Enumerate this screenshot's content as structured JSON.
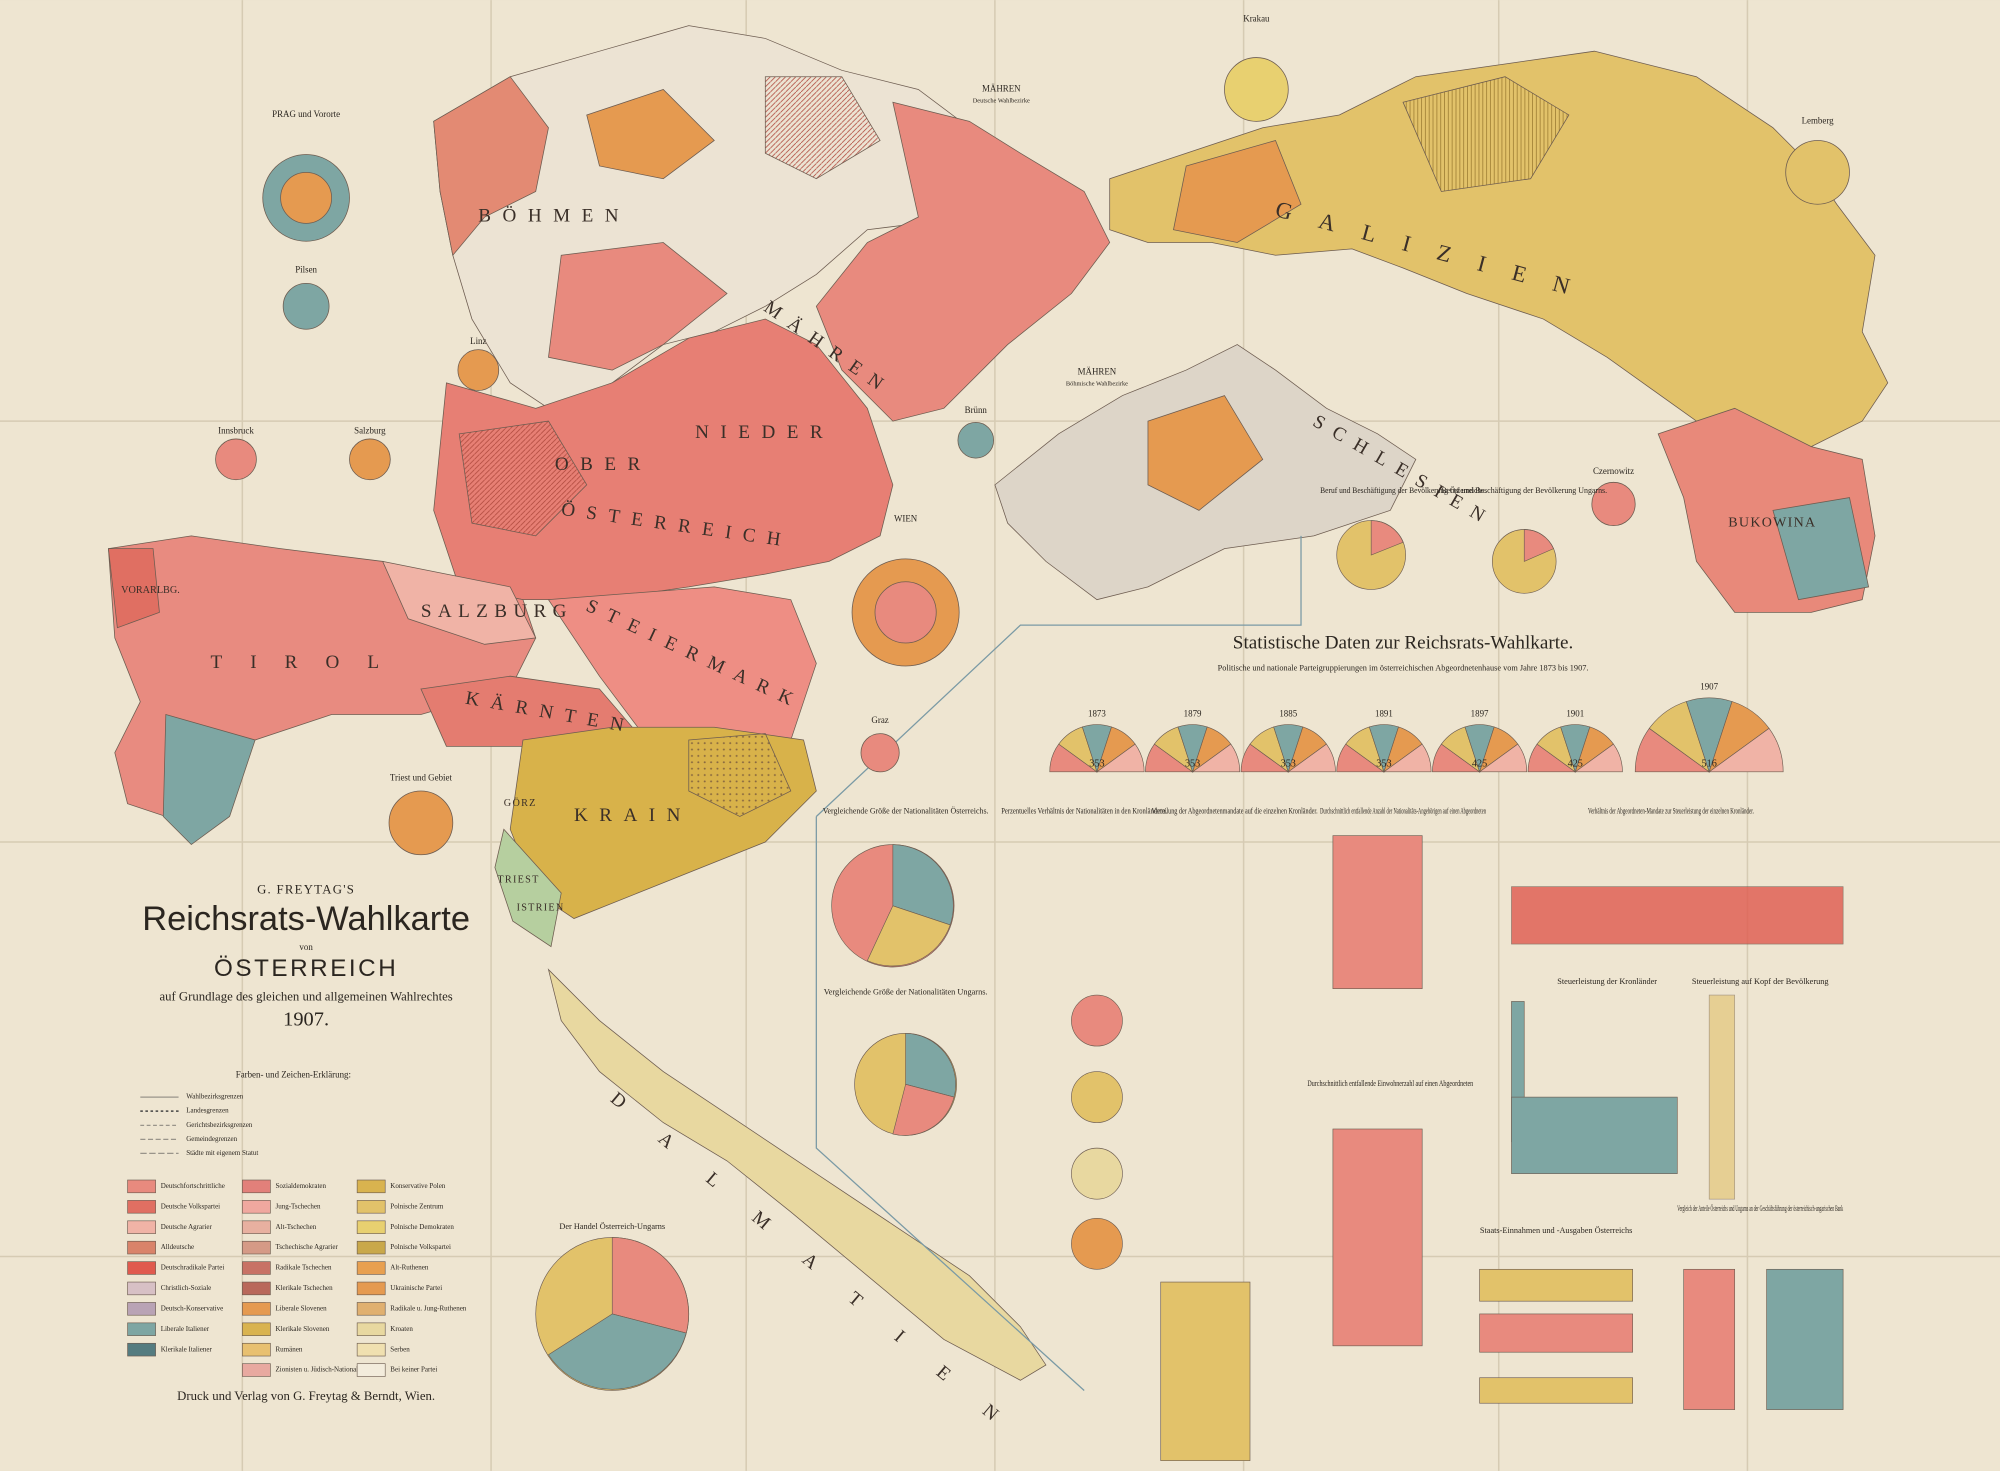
{
  "header": {
    "publisher_line": "G. FREYTAG'S",
    "title": "Reichsrats-Wahlkarte",
    "von": "von",
    "country": "ÖSTERREICH",
    "subtitle": "auf Grundlage des gleichen und allgemeinen Wahlrechtes",
    "year": "1907."
  },
  "regions": [
    "BÖHMEN",
    "MÄHREN",
    "SCHLESIEN",
    "GALIZIEN",
    "BUKOWINA",
    "OBER",
    "NIEDER",
    "ÖSTERREICH",
    "SALZBURG",
    "STEIERMARK",
    "TIROL",
    "VORARLBG.",
    "KÄRNTEN",
    "KRAIN",
    "GÖRZ",
    "TRIEST",
    "ISTRIEN",
    "DALMATIEN"
  ],
  "insets": [
    "PRAG und Vororte",
    "Pilsen",
    "Linz",
    "Innsbruck",
    "Salzburg",
    "Brünn",
    "WIEN",
    "Graz",
    "Triest und Gebiet",
    "Krakau",
    "Lemberg",
    "Czernowitz",
    "MÄHREN",
    "Deutsche Wahlbezirke",
    "MÄHREN",
    "Böhmische Wahlbezirke"
  ],
  "legend": {
    "title": "Farben- und Zeichen-Erklärung:",
    "symbols": [
      "Wahlbezirksgrenzen",
      "Landesgrenzen",
      "Gerichtsbezirksgrenzen",
      "Gemeindegrenzen",
      "Städte mit eigenem Statut"
    ],
    "parties": [
      "Deutschfortschrittliche",
      "Deutsche Volkspartei",
      "Deutsche Agrarier",
      "Alldeutsche",
      "Deutschradikale Partei",
      "Christlich-Soziale",
      "Deutsch-Konservative",
      "Liberale Italiener",
      "Klerikale Italiener",
      "Sozialdemokraten",
      "Jung-Tschechen",
      "Alt-Tschechen",
      "Tschechische Agrarier",
      "Radikale Tschechen",
      "Klerikale Tschechen",
      "Liberale Slovenen",
      "Klerikale Slovenen",
      "Rumänen",
      "Zionisten u. Jüdisch-Nationale",
      "Konservative Polen",
      "Polnische Zentrum",
      "Polnische Demokraten",
      "Polnische Volkspartei",
      "Alt-Ruthenen",
      "Ukrainische Partei",
      "Radikale u. Jung-Ruthenen",
      "Kroaten",
      "Serben",
      "Bei keiner Partei"
    ]
  },
  "imprint": "Druck und Verlag von G. Freytag & Berndt, Wien.",
  "statistics": {
    "title": "Statistische Daten zur Reichsrats-Wahlkarte.",
    "subtitle": "Politische und nationale Parteigruppierungen im österreichischen Abgeordnetenhause vom Jahre 1873 bis 1907.",
    "years": [
      "1873",
      "1879",
      "1885",
      "1891",
      "1897",
      "1901",
      "1907"
    ],
    "totals": [
      "353",
      "353",
      "353",
      "353",
      "425",
      "425",
      "516"
    ],
    "panels": [
      "Vergleichende Größe der Nationalitäten Österreichs.",
      "Vergleichende Größe der Nationalitäten Ungarns.",
      "Perzentuelles Verhältnis der Nationalitäten in den Kronländern.",
      "Verteilung der Abgeordnetenmandate auf die einzelnen Kronländer.",
      "Durchschnittlich entfallende Anzahl der Nationalitäts-Angehörigen auf einen Abgeordneten",
      "Verhältnis der Abgeordneten-Mandate zur Steuerleistung der einzelnen Kronländer.",
      "Steuerleistung der Kronländer",
      "Steuerleistung auf Kopf der Bevölkerung",
      "Durchschnittlich entfallende Einwohnerzahl auf einen Abgeordneten",
      "Staats-Einnahmen und -Ausgaben Österreichs",
      "Vergleich der Anteile Österreichs und Ungarns an der Geschäftsführung der österreichisch-ungarischen Bank",
      "Der Handel Österreich-Ungarns",
      "Beruf und Beschäftigung der Bevölkerung Österreichs.",
      "Beruf und Beschäftigung der Bevölkerung Ungarns."
    ]
  }
}
